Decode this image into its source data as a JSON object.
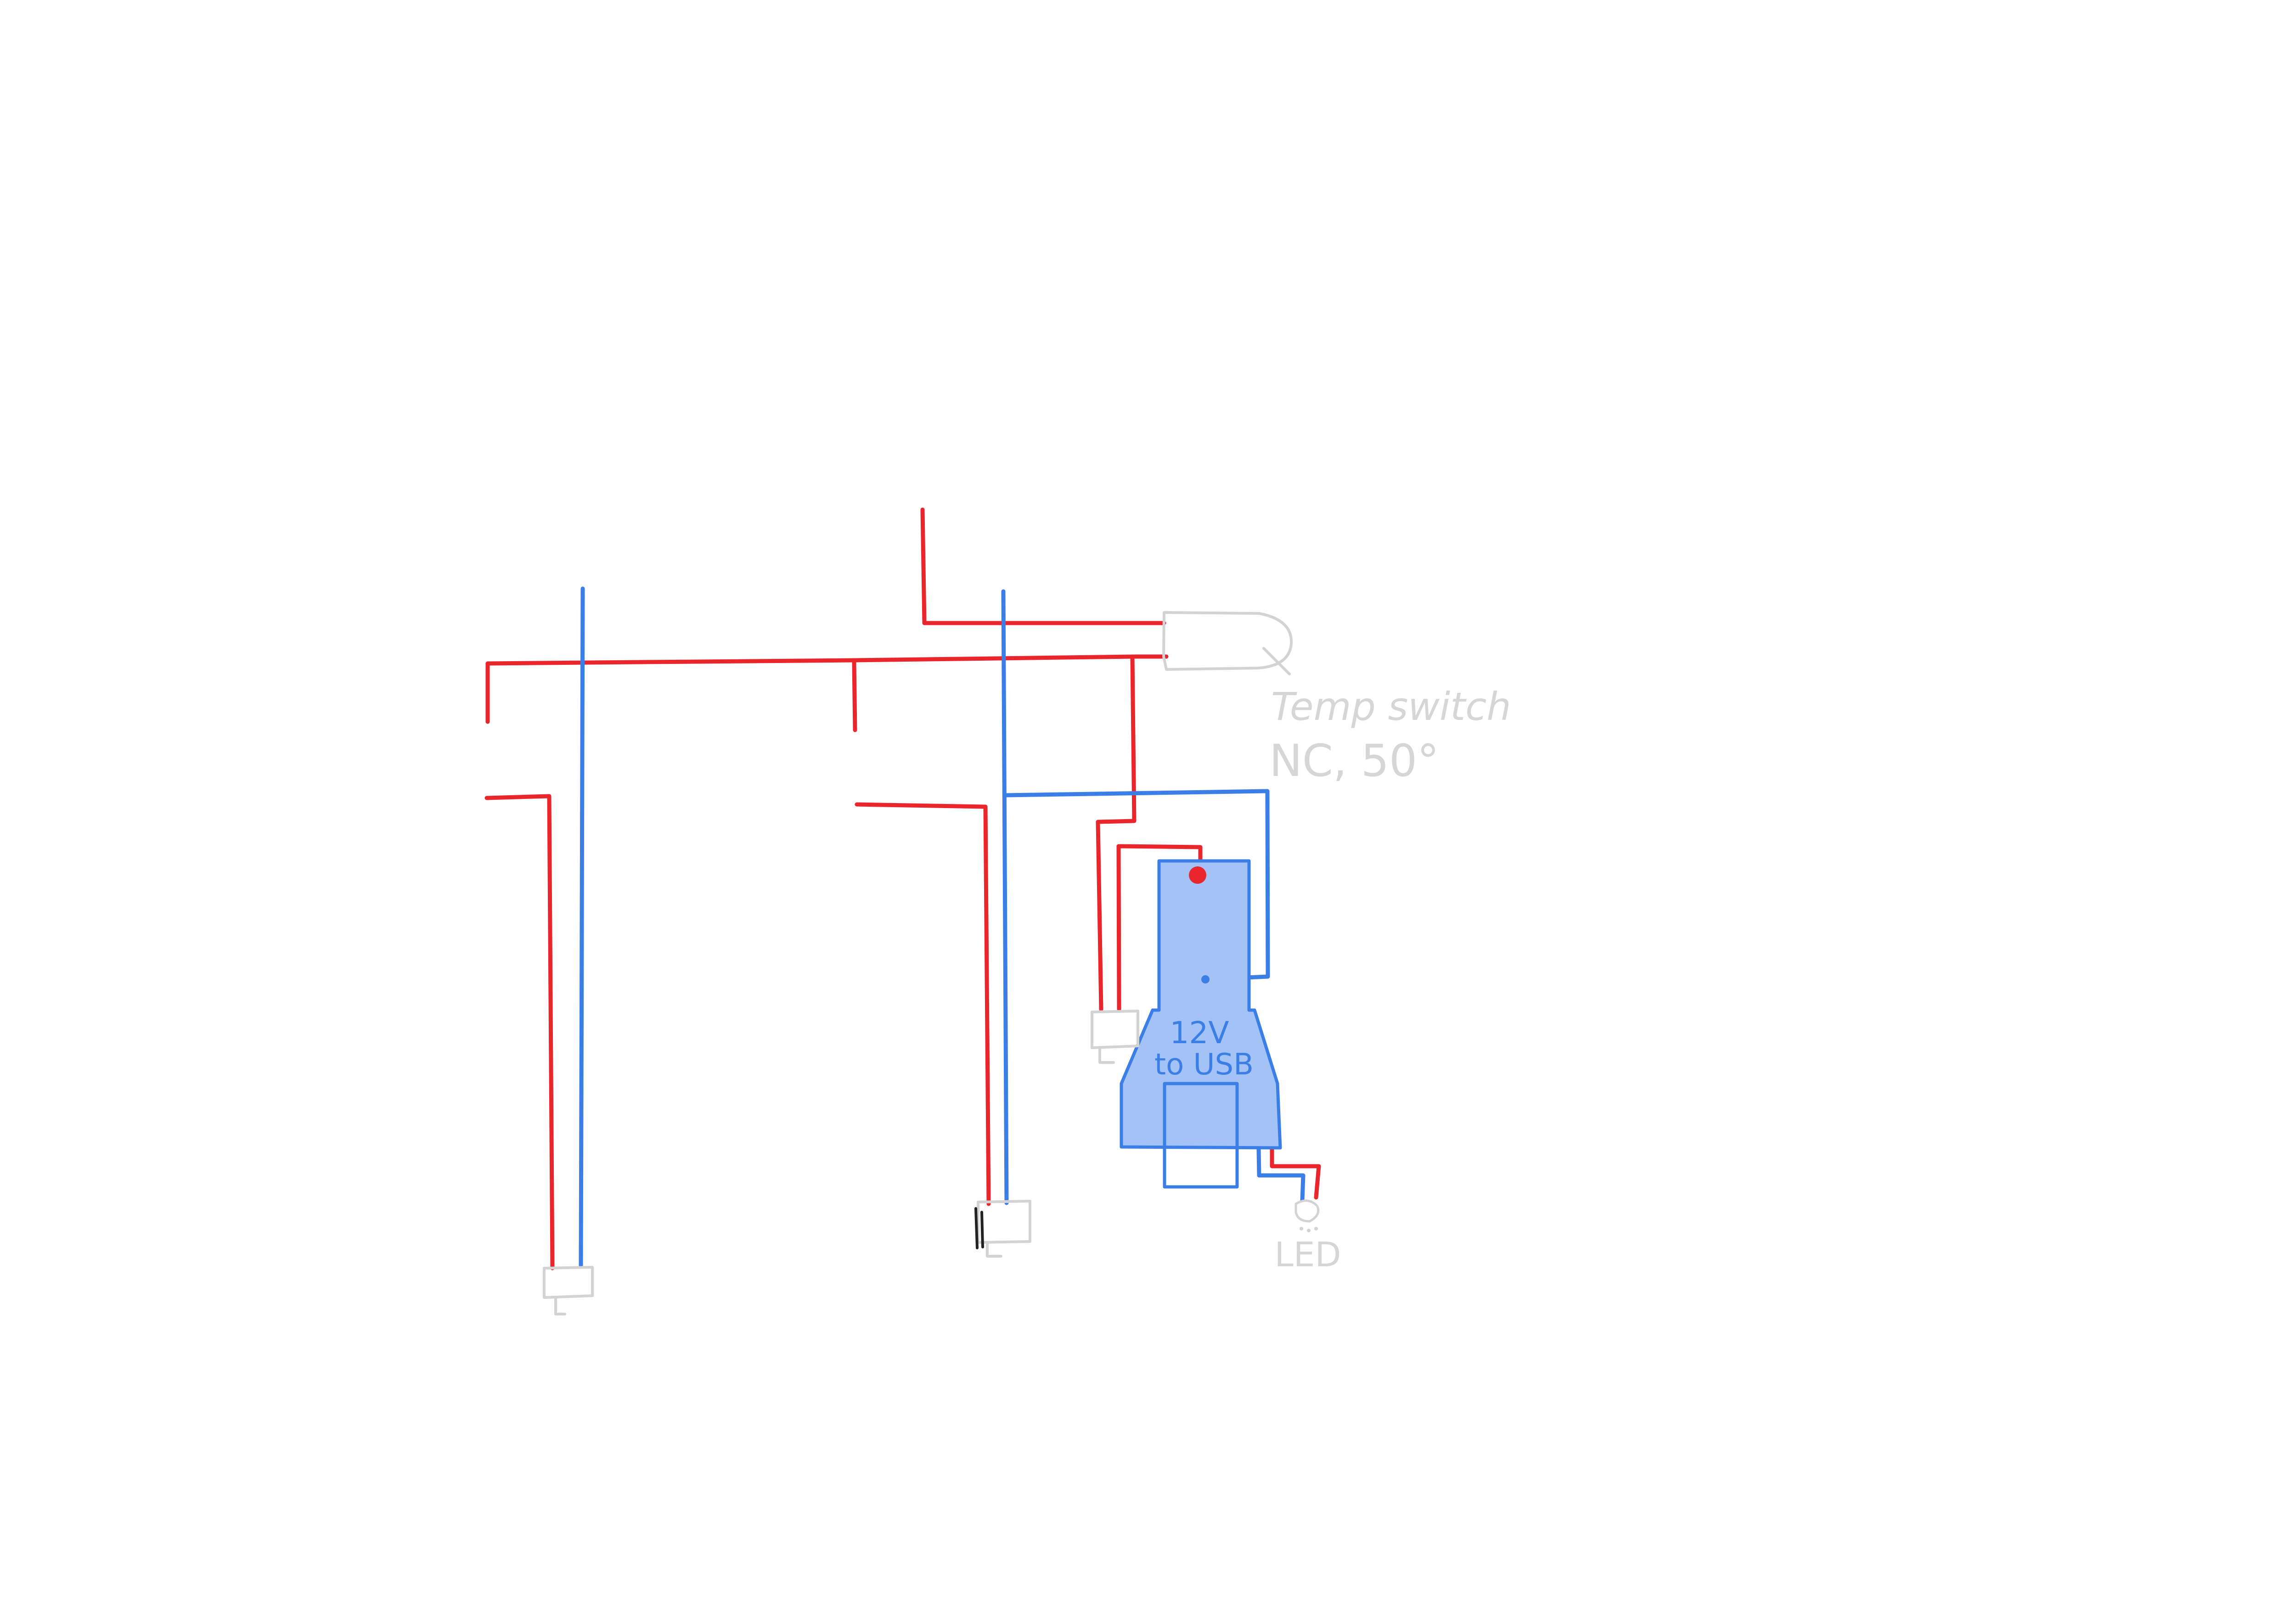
{
  "colors": {
    "background": "#ffffff",
    "positive_wire": "#e8262b",
    "negative_wire": "#3b7ee6",
    "component_outline": "#d3d3d3",
    "converter_fill": "#a3c2f5",
    "converter_outline": "#3b7ee6",
    "label_gray": "#d6d6d6",
    "label_blue": "#3b7ee6"
  },
  "labels": {
    "temp_switch_line1": "Temp switch",
    "temp_switch_line2": "NC, 50°",
    "converter_line1": "12V",
    "converter_line2": "to USB",
    "led": "LED"
  }
}
